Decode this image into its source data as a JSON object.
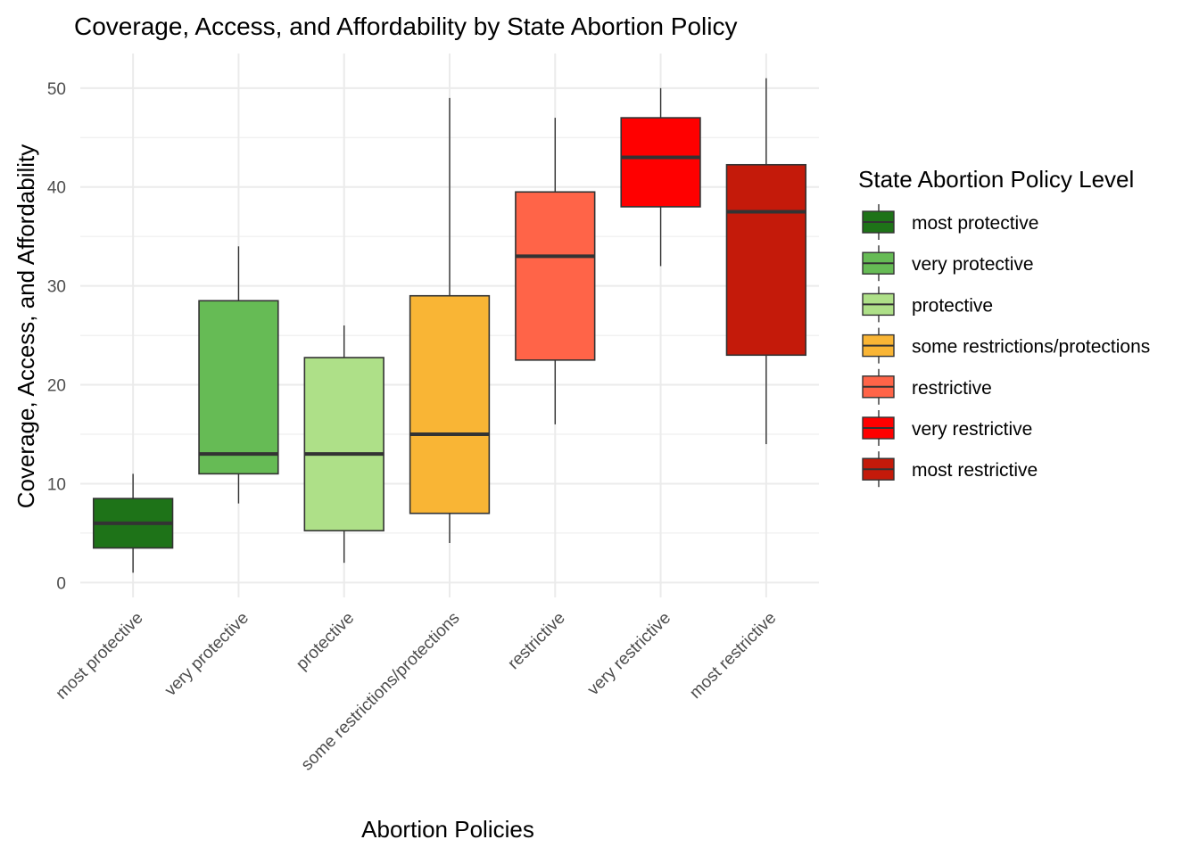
{
  "chart_data": {
    "type": "boxplot",
    "title": "Coverage, Access, and Affordability by State Abortion Policy",
    "xlabel": "Abortion Policies",
    "ylabel": "Coverage, Access, and Affordability",
    "ylim": [
      -1.5,
      53.5
    ],
    "yticks": [
      "0",
      "10",
      "20",
      "30",
      "40",
      "50"
    ],
    "grid": true,
    "legend_title": "State Abortion Policy Level",
    "legend_position": "right",
    "categories": [
      "most protective",
      "very protective",
      "protective",
      "some restrictions/protections",
      "restrictive",
      "very restrictive",
      "most restrictive"
    ],
    "boxes": [
      {
        "category": "most protective",
        "min": 1,
        "q1": 3.5,
        "median": 6,
        "q3": 8.5,
        "max": 11,
        "color": "#1e7318"
      },
      {
        "category": "very protective",
        "min": 8,
        "q1": 11,
        "median": 13,
        "q3": 28.5,
        "max": 34,
        "color": "#66bb55"
      },
      {
        "category": "protective",
        "min": 2,
        "q1": 5.25,
        "median": 13,
        "q3": 22.75,
        "max": 26,
        "color": "#aee088"
      },
      {
        "category": "some restrictions/protections",
        "min": 4,
        "q1": 7,
        "median": 15,
        "q3": 29,
        "max": 49,
        "color": "#f9b535"
      },
      {
        "category": "restrictive",
        "min": 16,
        "q1": 22.5,
        "median": 33,
        "q3": 39.5,
        "max": 47,
        "color": "#ff6448"
      },
      {
        "category": "very restrictive",
        "min": 32,
        "q1": 38,
        "median": 43,
        "q3": 47,
        "max": 50,
        "color": "#ff0000"
      },
      {
        "category": "most restrictive",
        "min": 14,
        "q1": 23,
        "median": 37.5,
        "q3": 42.25,
        "max": 51,
        "color": "#c41a0a"
      }
    ]
  }
}
